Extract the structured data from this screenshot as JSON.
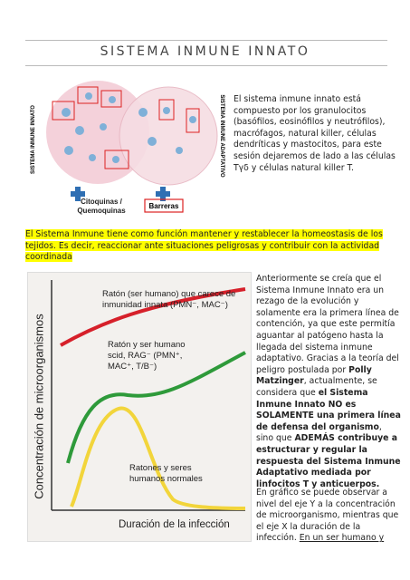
{
  "title": "SISTEMA INMUNE INNATO",
  "figure1": {
    "left_label": "SISTEMA INMUNE INNATO",
    "right_label": "SISTEMA INMUNE ADAPTATIVO",
    "cytokines": "Citoquinas / Quemoquinas",
    "barriers": "Barreras"
  },
  "intro": "El sistema inmune innato está compuesto por los granulocitos (basófilos, eosinófilos y neutrófilos), macrófagos, natural killer, células dendríticas y mastocitos, para este sesión dejaremos de lado a las células Tγδ y células natural killer T.",
  "highlight": "El Sistema Inmune tiene como función mantener y restablecer la homeostasis de los tejidos. Es decir, reaccionar ante situaciones peligrosas y contribuir con la actividad coordinada",
  "figure2": {
    "y_axis": "Concentración de microorganismos",
    "x_axis": "Duración de la infección",
    "curve_innate_deficient": "Ratón (ser humano) que carece de inmunidad innata (PMN⁻, MAC⁻)",
    "curve_scid": "Ratón y ser humano scid, RAG⁻ (PMN⁺, MAC⁺, T/B⁻)",
    "curve_normal": "Ratones y seres humanos normales"
  },
  "paragraph1": [
    {
      "text": "Anteriormente se creía que el Sistema Inmune Innato era un rezago de la evolución y solamente era la primera línea de contención, ya que este permitía aguantar al patógeno hasta la llegada del sistema inmune adaptativo. Gracias a la teoría del peligro postulada por ",
      "bold": false
    },
    {
      "text": "Polly Matzinger",
      "bold": true
    },
    {
      "text": ", actualmente, se considera que ",
      "bold": false
    },
    {
      "text": "el Sistema Inmune Innato NO es SOLAMENTE una primera línea de defensa del organismo",
      "bold": true
    },
    {
      "text": ", sino que ",
      "bold": false
    },
    {
      "text": "ADEMÁS contribuye a estructurar y regular la respuesta del Sistema Inmune Adaptativo mediada por linfocitos T y anticuerpos.",
      "bold": true
    }
  ],
  "paragraph2": [
    {
      "text": "En gráfico se puede observar a nivel del eje Y a la concentración de microorganismo, mientras que el eje X la duración de la infección. ",
      "underline": false
    },
    {
      "text": "En un ser humano y",
      "underline": true
    }
  ]
}
